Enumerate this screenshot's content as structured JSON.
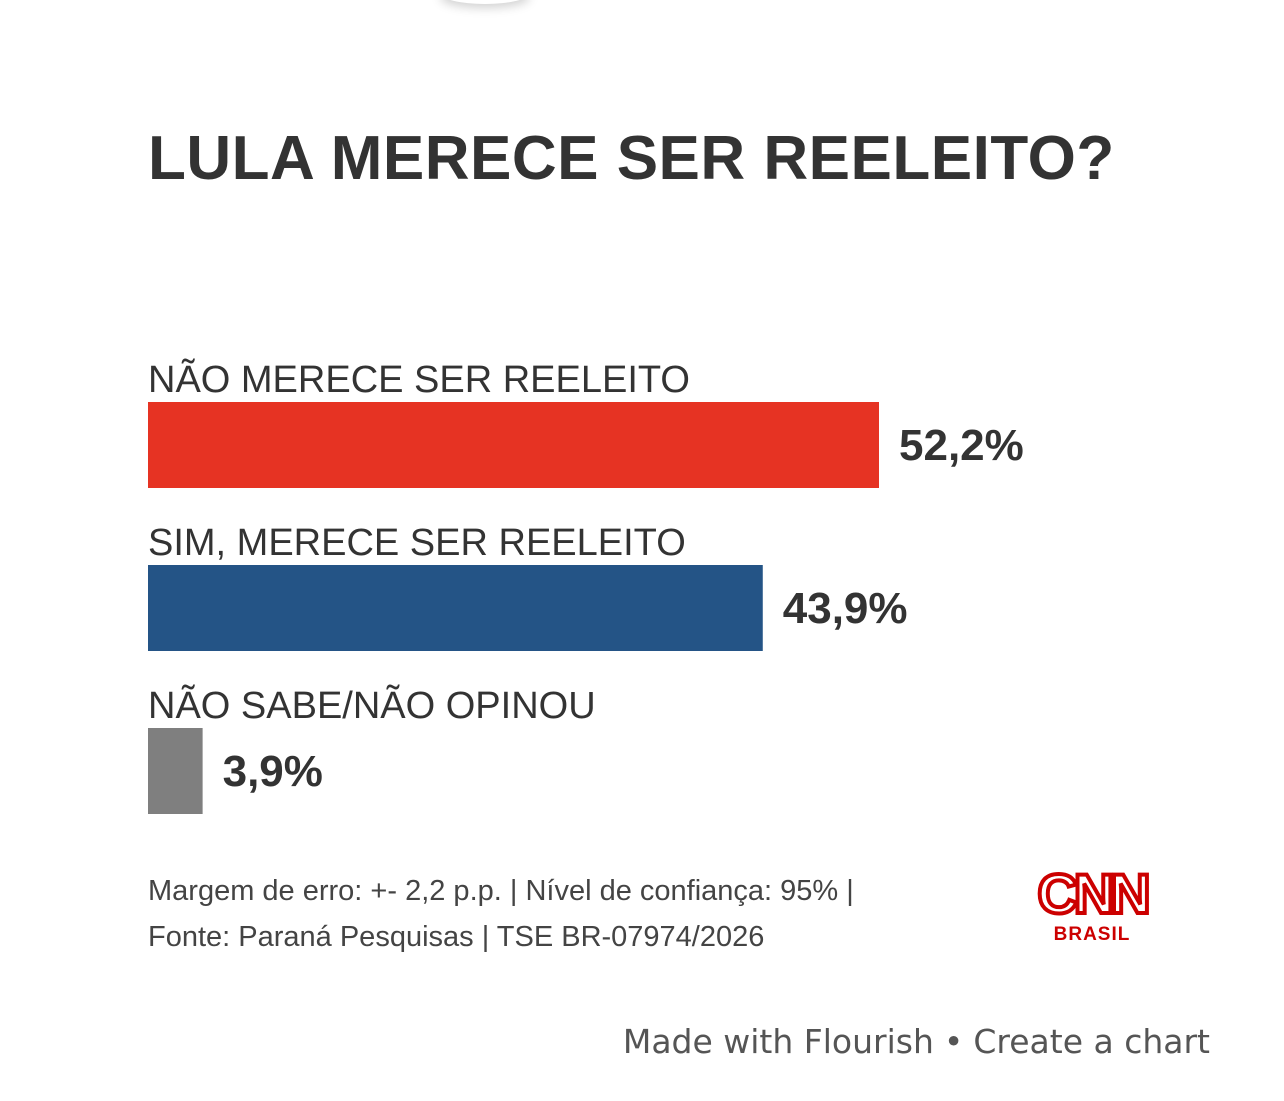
{
  "chart_data": {
    "type": "bar",
    "orientation": "horizontal",
    "title": "LULA MERECE SER REELEITO?",
    "categories": [
      "NÃO MERECE SER REELEITO",
      "SIM, MERECE SER REELEITO",
      "NÃO SABE/NÃO OPINOU"
    ],
    "values": [
      52.2,
      43.9,
      3.9
    ],
    "value_labels": [
      "52,2%",
      "43,9%",
      "3,9%"
    ],
    "colors": [
      "#e63323",
      "#245486",
      "#7f7f7f"
    ],
    "xlim": [
      0,
      52.2
    ],
    "grid": false,
    "legend": "none"
  },
  "footnote": {
    "line1": "Margem de erro: +- 2,2 p.p. | Nível de confiança: 95% |",
    "line2": "Fonte: Paraná Pesquisas | TSE BR-07974/2026"
  },
  "logo": {
    "name": "CNN",
    "subtitle": "BRASIL",
    "color": "#cc0000"
  },
  "attribution": {
    "made_with": "Made with Flourish",
    "separator": "•",
    "create": "Create a chart"
  }
}
